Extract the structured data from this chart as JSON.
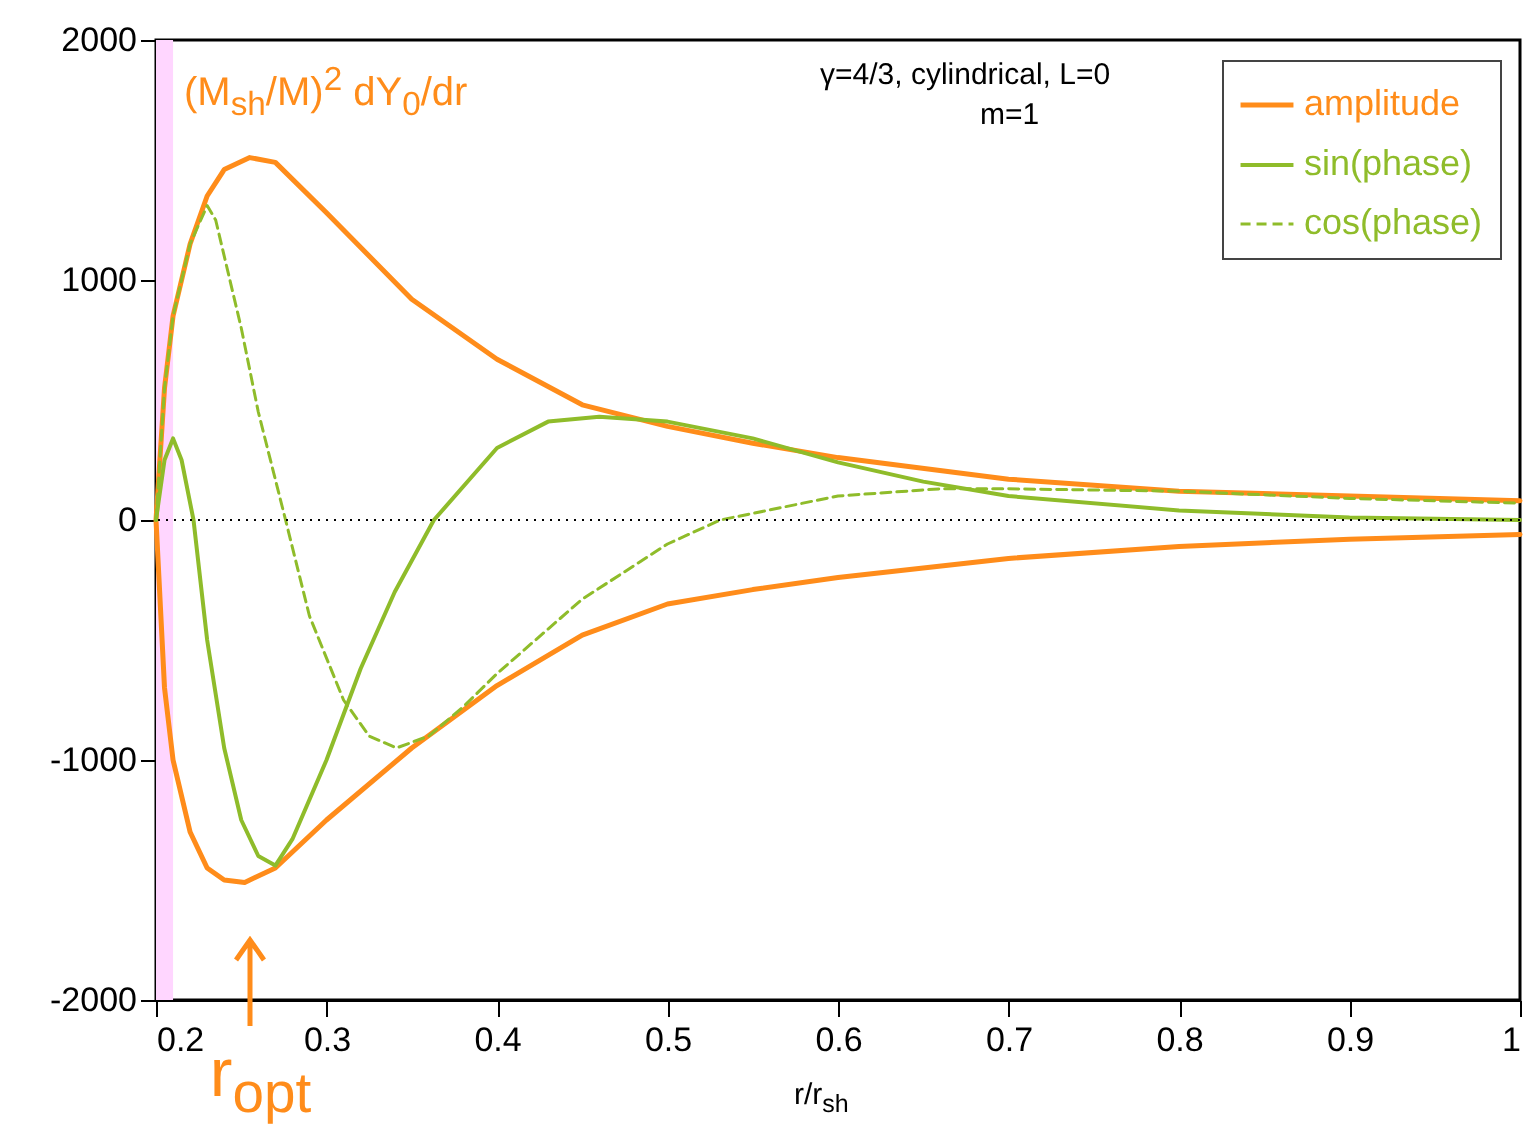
{
  "chart_data": {
    "type": "line",
    "xlabel": "r/r$_{sh}$",
    "xlim": [
      0.2,
      1
    ],
    "ylim": [
      -2000,
      2000
    ],
    "xticks": [
      0.2,
      0.3,
      0.4,
      0.5,
      0.6,
      0.7,
      0.8,
      0.9,
      1
    ],
    "yticks": [
      -2000,
      -1000,
      0,
      1000,
      2000
    ],
    "grid": false,
    "legend": "top right",
    "marker": "none",
    "annotations": [
      "(M$_{sh}$/M)$^{2}$ dY$_{0}$/dr",
      "γ=4/3, cylindrical, L=0",
      "m=1",
      {
        "text": "r$_{opt}$",
        "x": 0.255
      }
    ],
    "ref_lines": [
      {
        "axis": "y",
        "value": 0,
        "color": "#000000",
        "line_style": "dotted"
      }
    ],
    "bands": [
      {
        "axis": "x",
        "from": 0.2,
        "to": 0.21,
        "color": "#ffd6ff"
      }
    ],
    "series": [
      {
        "name": "amplitude",
        "color": "#ff8c1a",
        "line_style": "solid",
        "x": [
          1.0,
          0.9,
          0.8,
          0.7,
          0.6,
          0.55,
          0.5,
          0.45,
          0.4,
          0.35,
          0.3,
          0.27,
          0.255,
          0.24,
          0.23,
          0.22,
          0.21,
          0.205,
          0.2,
          0.205,
          0.21,
          0.22,
          0.23,
          0.24,
          0.252,
          0.27,
          0.3,
          0.35,
          0.4,
          0.45,
          0.5,
          0.55,
          0.6,
          0.7,
          0.8,
          0.9,
          1.0
        ],
        "values": [
          80,
          100,
          120,
          170,
          260,
          320,
          390,
          480,
          670,
          920,
          1280,
          1490,
          1510,
          1460,
          1350,
          1150,
          850,
          550,
          0,
          -700,
          -1000,
          -1300,
          -1450,
          -1500,
          -1510,
          -1450,
          -1250,
          -950,
          -690,
          -480,
          -350,
          -290,
          -240,
          -160,
          -110,
          -80,
          -60
        ]
      },
      {
        "name": "sin(phase)",
        "color": "#8fbc2a",
        "line_style": "solid",
        "x": [
          0.2,
          0.205,
          0.21,
          0.215,
          0.222,
          0.23,
          0.24,
          0.25,
          0.26,
          0.27,
          0.28,
          0.3,
          0.32,
          0.34,
          0.363,
          0.4,
          0.43,
          0.46,
          0.5,
          0.55,
          0.6,
          0.65,
          0.7,
          0.8,
          0.9,
          1.0
        ],
        "values": [
          0,
          250,
          340,
          250,
          0,
          -500,
          -950,
          -1250,
          -1400,
          -1440,
          -1330,
          -1000,
          -620,
          -300,
          0,
          300,
          410,
          430,
          410,
          340,
          240,
          160,
          100,
          40,
          10,
          0
        ]
      },
      {
        "name": "cos(phase)",
        "color": "#8fbc2a",
        "line_style": "dashed",
        "x": [
          0.2,
          0.205,
          0.21,
          0.22,
          0.23,
          0.235,
          0.25,
          0.26,
          0.276,
          0.29,
          0.31,
          0.325,
          0.341,
          0.36,
          0.38,
          0.4,
          0.45,
          0.5,
          0.531,
          0.6,
          0.66,
          0.7,
          0.8,
          0.9,
          1.0
        ],
        "values": [
          0,
          550,
          850,
          1150,
          1310,
          1250,
          800,
          450,
          0,
          -400,
          -750,
          -900,
          -950,
          -900,
          -780,
          -640,
          -330,
          -100,
          0,
          100,
          130,
          130,
          120,
          90,
          70
        ]
      }
    ]
  }
}
